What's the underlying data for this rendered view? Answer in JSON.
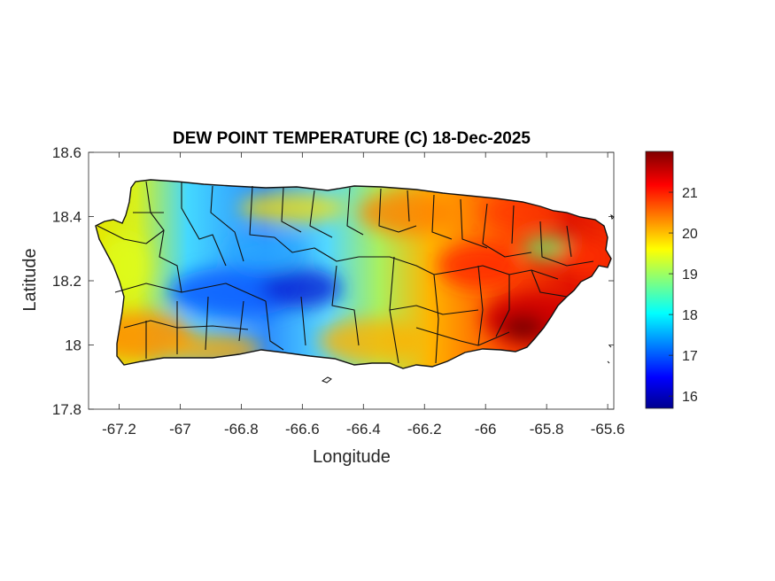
{
  "title": "DEW POINT TEMPERATURE (C) 18-Dec-2025",
  "xlabel": "Longitude",
  "ylabel": "Latitude",
  "x_ticks": [
    "-67.2",
    "-67",
    "-66.8",
    "-66.6",
    "-66.4",
    "-66.2",
    "-66",
    "-65.8",
    "-65.6"
  ],
  "y_ticks": [
    "18.6",
    "18.4",
    "18.2",
    "18",
    "17.8"
  ],
  "colorbar": {
    "ticks": [
      "21",
      "20",
      "19",
      "18",
      "17",
      "16"
    ],
    "range": [
      15.7,
      22.0
    ],
    "colormap": "jet"
  },
  "chart_data": {
    "type": "heatmap",
    "title": "DEW POINT TEMPERATURE (C) 18-Dec-2025",
    "xlabel": "Longitude",
    "ylabel": "Latitude",
    "xlim": [
      -67.3,
      -65.58
    ],
    "ylim": [
      17.8,
      18.6
    ],
    "x_ticks": [
      -67.2,
      -67,
      -66.8,
      -66.6,
      -66.4,
      -66.2,
      -66,
      -65.8,
      -65.6
    ],
    "y_ticks": [
      18.6,
      18.4,
      18.2,
      18,
      17.8
    ],
    "color_range": [
      15.7,
      22.0
    ],
    "colorbar_ticks": [
      16,
      17,
      18,
      19,
      20,
      21
    ],
    "region": "Puerto Rico (with municipality boundaries)",
    "approx_field_samples": [
      {
        "lon": -67.2,
        "lat": 18.4,
        "value": 19.4
      },
      {
        "lon": -67.2,
        "lat": 18.05,
        "value": 20.4
      },
      {
        "lon": -67.0,
        "lat": 18.45,
        "value": 19.0
      },
      {
        "lon": -66.85,
        "lat": 18.17,
        "value": 16.8
      },
      {
        "lon": -66.6,
        "lat": 18.17,
        "value": 16.2
      },
      {
        "lon": -66.7,
        "lat": 18.25,
        "value": 17.6
      },
      {
        "lon": -66.5,
        "lat": 18.45,
        "value": 19.8
      },
      {
        "lon": -66.3,
        "lat": 18.2,
        "value": 19.0
      },
      {
        "lon": -66.2,
        "lat": 18.0,
        "value": 20.3
      },
      {
        "lon": -66.0,
        "lat": 18.4,
        "value": 21.0
      },
      {
        "lon": -65.9,
        "lat": 18.05,
        "value": 21.8
      },
      {
        "lon": -65.7,
        "lat": 18.35,
        "value": 21.4
      }
    ]
  }
}
